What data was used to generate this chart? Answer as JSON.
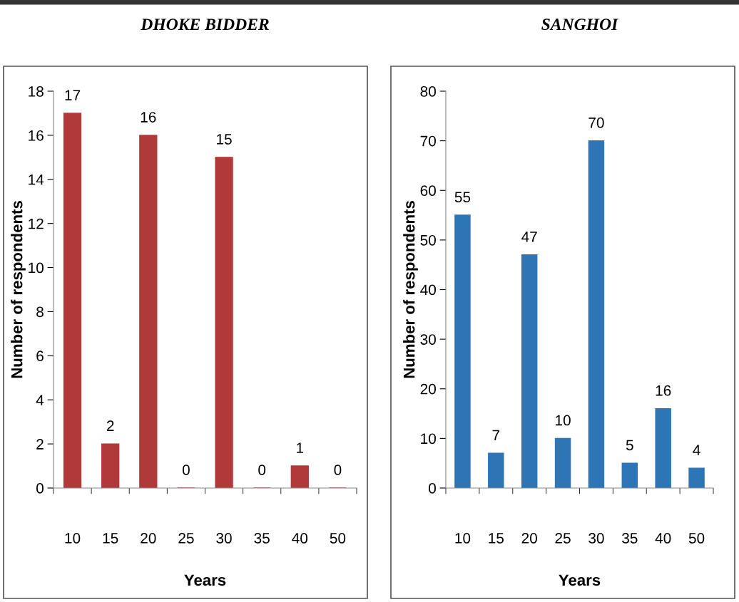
{
  "chart_data": [
    {
      "type": "bar",
      "title": "DHOKE BIDDER",
      "xlabel": "Years",
      "ylabel": "Number of respondents",
      "categories": [
        "10",
        "15",
        "20",
        "25",
        "30",
        "35",
        "40",
        "50"
      ],
      "values": [
        17,
        2,
        16,
        0,
        15,
        0,
        1,
        0
      ],
      "color": "#b03a3a",
      "ylim": [
        0,
        18
      ],
      "yticks": [
        0,
        2,
        4,
        6,
        8,
        10,
        12,
        14,
        16,
        18
      ],
      "data_labels": true,
      "grid": false,
      "legend": false
    },
    {
      "type": "bar",
      "title": "SANGHOI",
      "xlabel": "Years",
      "ylabel": "Number of respondents",
      "categories": [
        "10",
        "15",
        "20",
        "25",
        "30",
        "35",
        "40",
        "50"
      ],
      "values": [
        55,
        7,
        47,
        10,
        70,
        5,
        16,
        4
      ],
      "color": "#2e75b6",
      "ylim": [
        0,
        80
      ],
      "yticks": [
        0,
        10,
        20,
        30,
        40,
        50,
        60,
        70,
        80
      ],
      "data_labels": true,
      "grid": false,
      "legend": false
    }
  ]
}
